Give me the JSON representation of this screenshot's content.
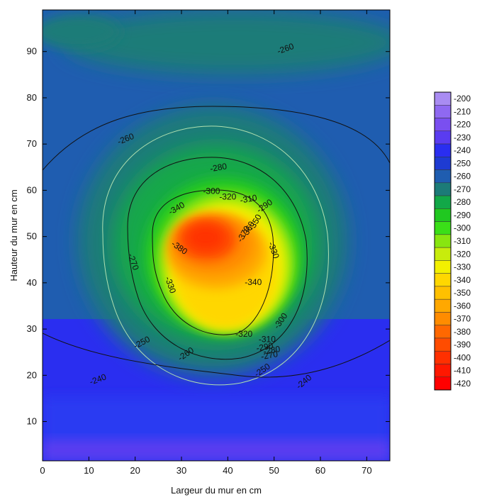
{
  "chart_data": {
    "type": "heatmap",
    "title": "",
    "xlabel": "Largeur du mur en cm",
    "ylabel": "Hauteur du mur en cm",
    "xlim": [
      0,
      75
    ],
    "ylim": [
      1.5,
      99
    ],
    "x_ticks": [
      0,
      10,
      20,
      30,
      40,
      50,
      60,
      70
    ],
    "y_ticks": [
      10,
      20,
      30,
      40,
      50,
      60,
      70,
      80,
      90
    ],
    "legend": {
      "placement": "right",
      "levels": [
        -200,
        -210,
        -220,
        -230,
        -240,
        -250,
        -260,
        -270,
        -280,
        -290,
        -300,
        -310,
        -320,
        -330,
        -340,
        -350,
        -360,
        -370,
        -380,
        -390,
        -400,
        -410,
        -420
      ],
      "colors": [
        "#a98cf2",
        "#8f69f1",
        "#7a4ff0",
        "#5a3cf0",
        "#2a2ef0",
        "#1e3bd2",
        "#1f5db0",
        "#1c7b78",
        "#12a848",
        "#20c820",
        "#3adf18",
        "#88e610",
        "#c8ec0c",
        "#f3f000",
        "#ffd700",
        "#ffc000",
        "#ffa800",
        "#ff8c00",
        "#ff6800",
        "#ff4c00",
        "#ff3000",
        "#ff1800",
        "#ff0000"
      ]
    },
    "contour_labels": [
      {
        "text": "-260",
        "x": 52.5,
        "y": 90.5,
        "angle": -20
      },
      {
        "text": "-260",
        "x": 18,
        "y": 71,
        "angle": -22
      },
      {
        "text": "-280",
        "x": 38,
        "y": 64.8,
        "angle": -10
      },
      {
        "text": "-300",
        "x": 36.5,
        "y": 59.7,
        "angle": 0
      },
      {
        "text": "-320",
        "x": 40,
        "y": 58.5,
        "angle": 0
      },
      {
        "text": "-310",
        "x": 44.5,
        "y": 58,
        "angle": -10
      },
      {
        "text": "-290",
        "x": 48,
        "y": 56.5,
        "angle": -35
      },
      {
        "text": "-340",
        "x": 29,
        "y": 56,
        "angle": -30
      },
      {
        "text": "-350",
        "x": 46,
        "y": 53,
        "angle": -60
      },
      {
        "text": "-360",
        "x": 44.5,
        "y": 51.5,
        "angle": -60
      },
      {
        "text": "-370",
        "x": 43.5,
        "y": 50.5,
        "angle": -60
      },
      {
        "text": "-380",
        "x": 29.5,
        "y": 47.5,
        "angle": 35
      },
      {
        "text": "-330",
        "x": 49.8,
        "y": 47,
        "angle": 70
      },
      {
        "text": "-270",
        "x": 19.5,
        "y": 44.5,
        "angle": 70
      },
      {
        "text": "-330",
        "x": 27.5,
        "y": 39.5,
        "angle": 70
      },
      {
        "text": "-340",
        "x": 45.5,
        "y": 40,
        "angle": 0
      },
      {
        "text": "-300",
        "x": 51.5,
        "y": 31.7,
        "angle": -55
      },
      {
        "text": "-320",
        "x": 43.5,
        "y": 28.8,
        "angle": 0
      },
      {
        "text": "-310",
        "x": 48.5,
        "y": 27.7,
        "angle": 0
      },
      {
        "text": "-250",
        "x": 21.5,
        "y": 27,
        "angle": -28
      },
      {
        "text": "-290",
        "x": 48,
        "y": 26,
        "angle": -10
      },
      {
        "text": "-280",
        "x": 49.5,
        "y": 25.3,
        "angle": -10
      },
      {
        "text": "-270",
        "x": 49,
        "y": 24.2,
        "angle": -10
      },
      {
        "text": "-260",
        "x": 31,
        "y": 24.5,
        "angle": -35
      },
      {
        "text": "-250",
        "x": 47.5,
        "y": 21,
        "angle": -35
      },
      {
        "text": "-240",
        "x": 12,
        "y": 19,
        "angle": -20
      },
      {
        "text": "-240",
        "x": 56.5,
        "y": 18.5,
        "angle": -40
      }
    ]
  }
}
